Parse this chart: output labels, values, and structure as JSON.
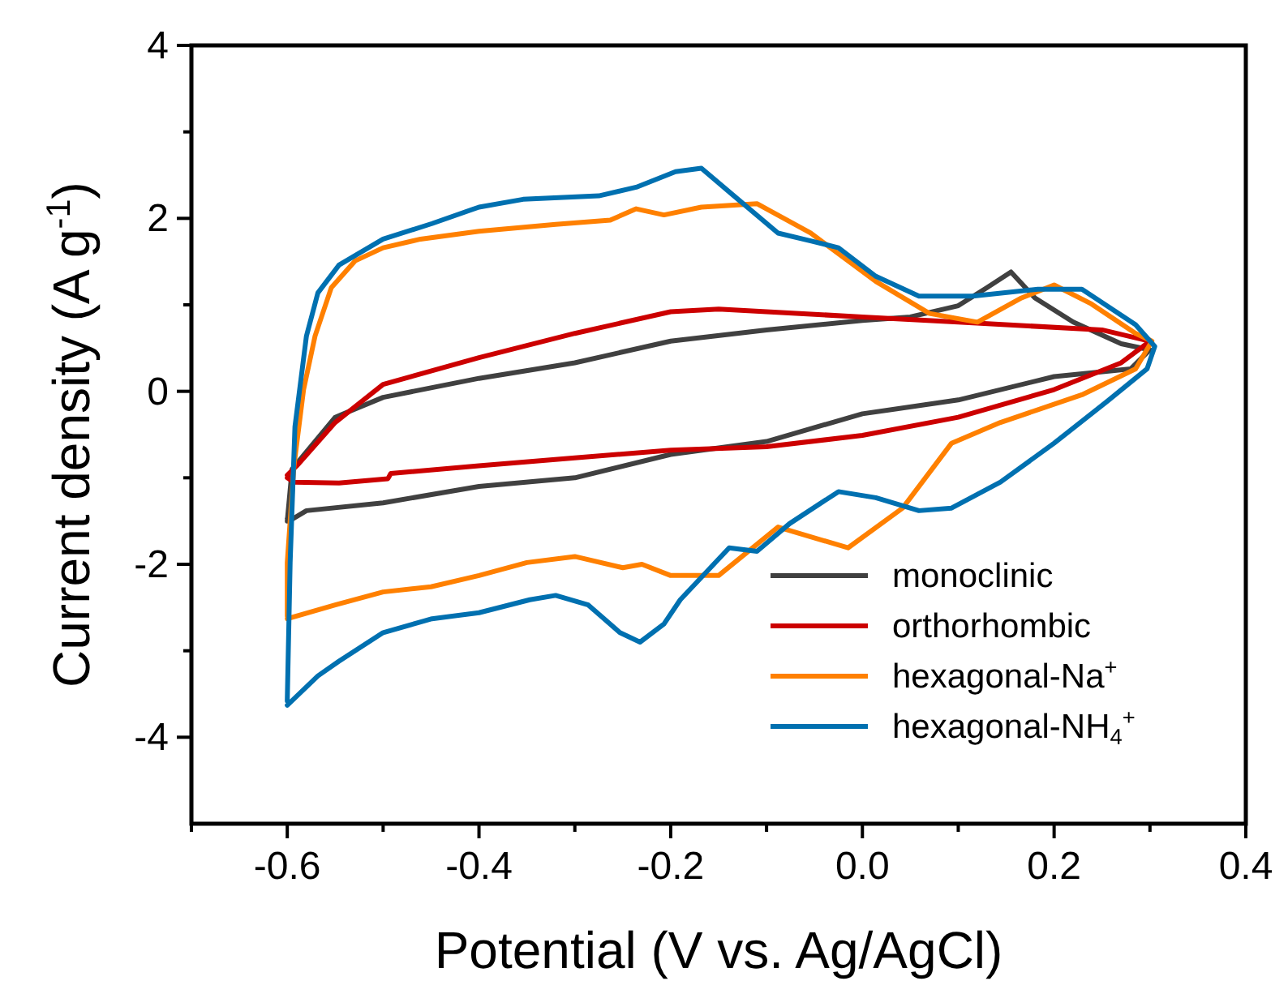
{
  "chart_data": {
    "type": "line",
    "xlabel": "Potential (V vs. Ag/AgCl)",
    "ylabel": "Current density (A g$^{-1}$)",
    "xlim": [
      -0.7,
      0.4
    ],
    "ylim": [
      -5,
      4
    ],
    "xticks": [
      {
        "value": -0.7,
        "label": null
      },
      -0.6,
      {
        "value": -0.5,
        "label": null
      },
      -0.4,
      {
        "value": -0.3,
        "label": null
      },
      -0.2,
      {
        "value": -0.1,
        "label": null
      },
      {
        "value": 0,
        "label": "0.0"
      },
      {
        "value": 0.1,
        "label": null
      },
      0.2,
      {
        "value": 0.3,
        "label": null
      },
      0.4
    ],
    "yticks": [
      -4,
      {
        "value": -3,
        "label": null
      },
      -2,
      {
        "value": -1,
        "label": null
      },
      0,
      {
        "value": 1,
        "label": null
      },
      2,
      {
        "value": 3,
        "label": null
      },
      4
    ],
    "grid": false,
    "legend": "bottom right",
    "marker": "none",
    "line_style": "solid",
    "series": [
      {
        "name": "monoclinic",
        "color": "#404040",
        "x": [
          -0.6,
          -0.595,
          -0.55,
          -0.5,
          -0.4,
          -0.3,
          -0.2,
          -0.1,
          0,
          0.05,
          0.1,
          0.13,
          0.155,
          0.18,
          0.22,
          0.27,
          0.3,
          0.28,
          0.2,
          0.1,
          0,
          -0.1,
          -0.2,
          -0.3,
          -0.4,
          -0.5,
          -0.58,
          -0.595,
          -0.6
        ],
        "values": [
          -1.5,
          -0.9,
          -0.3,
          -0.07,
          0.15,
          0.33,
          0.58,
          0.71,
          0.82,
          0.86,
          0.99,
          1.2,
          1.38,
          1.08,
          0.8,
          0.55,
          0.48,
          0.26,
          0.17,
          -0.1,
          -0.26,
          -0.58,
          -0.73,
          -1.0,
          -1.1,
          -1.29,
          -1.38,
          -1.48,
          -1.47
        ]
      },
      {
        "name": "orthorhombic",
        "color": "#cc0000",
        "x": [
          -0.6,
          -0.593,
          -0.546,
          -0.495,
          -0.492,
          -0.4,
          -0.3,
          -0.2,
          -0.1,
          0,
          0.1,
          0.2,
          0.27,
          0.3,
          0.25,
          0.1,
          0,
          -0.1,
          -0.15,
          -0.2,
          -0.3,
          -0.4,
          -0.5,
          -0.55,
          -0.59,
          -0.6
        ],
        "values": [
          -1.0,
          -1.05,
          -1.06,
          -1.01,
          -0.95,
          -0.86,
          -0.77,
          -0.68,
          -0.64,
          -0.51,
          -0.3,
          0.02,
          0.33,
          0.58,
          0.71,
          0.8,
          0.86,
          0.92,
          0.95,
          0.92,
          0.67,
          0.39,
          0.08,
          -0.36,
          -0.86,
          -0.97
        ]
      },
      {
        "name": "hexagonal-Na$^{+}$",
        "color": "#ff8000",
        "x": [
          -0.6,
          -0.55,
          -0.5,
          -0.45,
          -0.4,
          -0.35,
          -0.3,
          -0.25,
          -0.23,
          -0.2,
          -0.15,
          -0.088,
          -0.015,
          0.042,
          0.093,
          0.144,
          0.229,
          0.285,
          0.302,
          0.285,
          0.239,
          0.2,
          0.166,
          0.12,
          0.07,
          0.014,
          -0.054,
          -0.11,
          -0.168,
          -0.207,
          -0.236,
          -0.263,
          -0.32,
          -0.4,
          -0.461,
          -0.5,
          -0.529,
          -0.554,
          -0.571,
          -0.583,
          -0.593,
          -0.6,
          -0.6
        ],
        "values": [
          -2.63,
          -2.47,
          -2.32,
          -2.26,
          -2.13,
          -1.98,
          -1.91,
          -2.04,
          -2.0,
          -2.13,
          -2.13,
          -1.57,
          -1.81,
          -1.35,
          -0.6,
          -0.36,
          -0.04,
          0.26,
          0.58,
          0.67,
          1.01,
          1.23,
          1.08,
          0.8,
          0.9,
          1.27,
          1.83,
          2.17,
          2.13,
          2.04,
          2.11,
          1.98,
          1.93,
          1.85,
          1.76,
          1.66,
          1.51,
          1.2,
          0.64,
          0.02,
          -0.86,
          -1.98,
          -2.6
        ]
      },
      {
        "name": "hexagonal-NH$_{4}$$^{+}$",
        "color": "#0070b0",
        "x": [
          -0.6,
          -0.568,
          -0.546,
          -0.5,
          -0.449,
          -0.4,
          -0.347,
          -0.32,
          -0.286,
          -0.253,
          -0.232,
          -0.207,
          -0.19,
          -0.139,
          -0.11,
          -0.076,
          -0.025,
          0.014,
          0.059,
          0.093,
          0.144,
          0.2,
          0.256,
          0.297,
          0.305,
          0.285,
          0.229,
          0.183,
          0.115,
          0.059,
          0.014,
          -0.025,
          -0.054,
          -0.088,
          -0.134,
          -0.168,
          -0.195,
          -0.236,
          -0.275,
          -0.354,
          -0.4,
          -0.449,
          -0.5,
          -0.546,
          -0.568,
          -0.58,
          -0.592,
          -0.597,
          -0.6
        ],
        "values": [
          -3.63,
          -3.29,
          -3.12,
          -2.79,
          -2.63,
          -2.56,
          -2.41,
          -2.36,
          -2.47,
          -2.79,
          -2.9,
          -2.69,
          -2.41,
          -1.81,
          -1.85,
          -1.53,
          -1.16,
          -1.23,
          -1.38,
          -1.35,
          -1.05,
          -0.6,
          -0.11,
          0.26,
          0.52,
          0.77,
          1.18,
          1.18,
          1.1,
          1.1,
          1.33,
          1.66,
          1.74,
          1.83,
          2.26,
          2.58,
          2.54,
          2.36,
          2.26,
          2.22,
          2.13,
          1.94,
          1.76,
          1.46,
          1.14,
          0.64,
          -0.41,
          -1.98,
          -3.58
        ]
      }
    ]
  }
}
